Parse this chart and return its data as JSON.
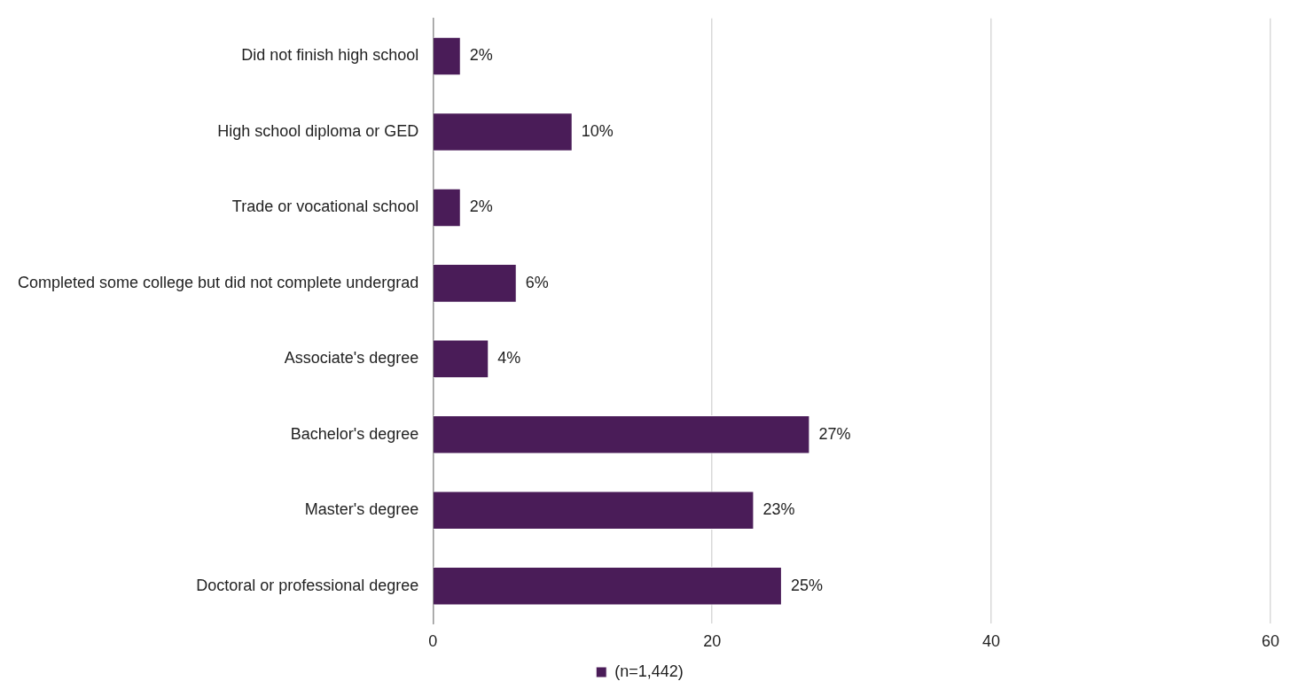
{
  "chart_data": {
    "type": "bar",
    "orientation": "horizontal",
    "categories": [
      "Did not finish high school",
      "High school diploma or GED",
      "Trade or vocational school",
      "Completed some college but did not complete undergrad",
      "Associate's degree",
      "Bachelor's degree",
      "Master's degree",
      "Doctoral or professional degree"
    ],
    "series": [
      {
        "name": "(n=1,442)",
        "color": "#4a1c58",
        "values": [
          2,
          10,
          2,
          6,
          4,
          27,
          23,
          25
        ],
        "value_labels": [
          "2%",
          "10%",
          "2%",
          "6%",
          "4%",
          "27%",
          "23%",
          "25%"
        ]
      }
    ],
    "xlim": [
      0,
      60
    ],
    "xticks": [
      0,
      20,
      40,
      60
    ],
    "grid": "x",
    "legend": "bottom"
  }
}
